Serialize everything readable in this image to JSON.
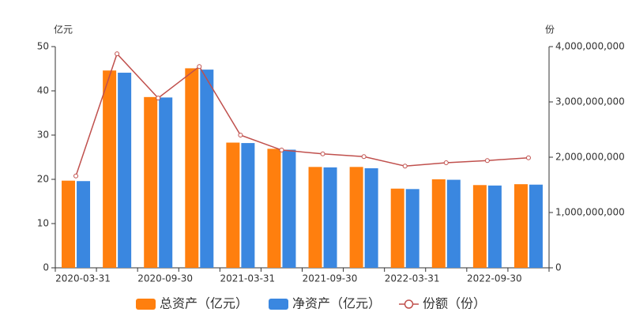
{
  "chart_data": {
    "type": "bar_line",
    "y_label": "亿元",
    "y2_label": "份",
    "categories": [
      "2020-03-31",
      null,
      "2020-09-30",
      null,
      "2021-03-31",
      null,
      "2021-09-30",
      null,
      "2022-03-31",
      null,
      "2022-09-30",
      null
    ],
    "series": [
      {
        "name": "总资产（亿元）",
        "type": "bar",
        "color": "#ff7f0e",
        "values": [
          19.7,
          44.6,
          38.6,
          45.1,
          28.3,
          26.9,
          22.8,
          22.8,
          17.9,
          20.0,
          18.7,
          18.9
        ]
      },
      {
        "name": "净资产（亿元）",
        "type": "bar",
        "color": "#3a87e0",
        "values": [
          19.6,
          44.1,
          38.5,
          44.8,
          28.2,
          26.7,
          22.7,
          22.5,
          17.8,
          19.9,
          18.6,
          18.8
        ]
      },
      {
        "name": "份额（份）",
        "type": "line",
        "axis": "y2",
        "color": "#c0504d",
        "values": [
          1660000000,
          3870000000,
          3070000000,
          3640000000,
          2400000000,
          2130000000,
          2060000000,
          2010000000,
          1840000000,
          1900000000,
          1940000000,
          1990000000
        ]
      }
    ],
    "ylim": [
      0,
      50
    ],
    "yticks": [
      0,
      10,
      20,
      30,
      40,
      50
    ],
    "y2lim": [
      0,
      4000000000
    ],
    "y2ticks": [
      0,
      {
        "value": 1000000000,
        "label": "1,000,000,000"
      },
      {
        "value": 2000000000,
        "label": "2,000,000,000"
      },
      {
        "value": 3000000000,
        "label": "3,000,000,000"
      },
      {
        "value": 4000000000,
        "label": "4,000,000,000"
      }
    ]
  }
}
